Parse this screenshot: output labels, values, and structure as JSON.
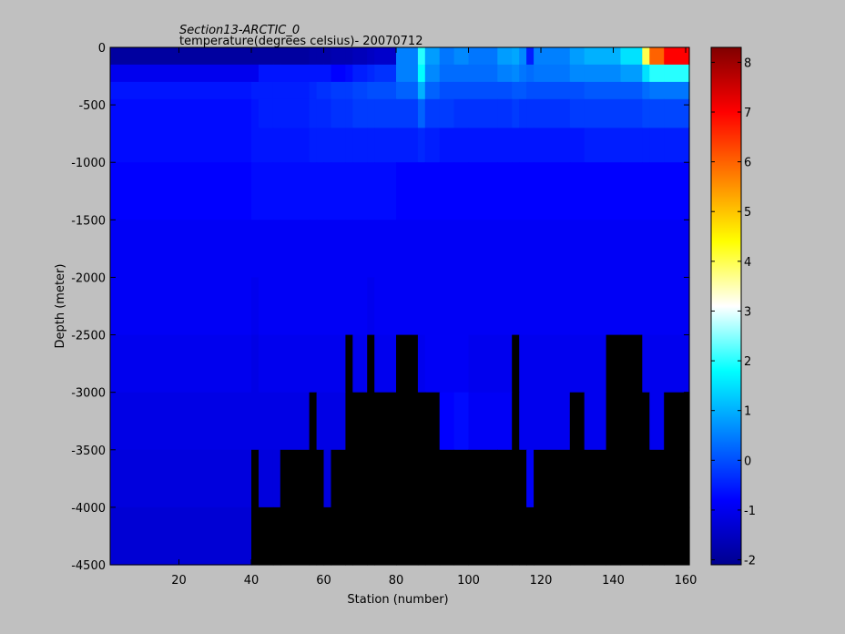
{
  "chart_data": {
    "type": "heatmap",
    "title": "Section13-ARCTIC_0",
    "subtitle": "temperature(degrees  celsius)- 20070712",
    "xlabel": "Station (number)",
    "ylabel": "Depth (meter)",
    "xlim": [
      1,
      161
    ],
    "ylim": [
      -4500,
      0
    ],
    "xticks": [
      20,
      40,
      60,
      80,
      100,
      120,
      140,
      160
    ],
    "yticks": [
      0,
      -500,
      -1000,
      -1500,
      -2000,
      -2500,
      -3000,
      -3500,
      -4000,
      -4500
    ],
    "colorbar": {
      "ticks": [
        8,
        7,
        6,
        5,
        4,
        3,
        2,
        1,
        0,
        -1,
        -2
      ],
      "clim": [
        -2.1,
        8.3
      ],
      "colormap": "jet"
    },
    "nodata_color": "#000000",
    "column_stations": [
      1,
      40,
      42,
      46,
      48,
      56,
      58,
      60,
      62,
      66,
      68,
      72,
      74,
      80,
      86,
      88,
      92,
      96,
      100,
      108,
      112,
      114,
      116,
      118,
      128,
      132,
      138,
      142,
      148,
      150,
      154,
      161
    ],
    "depth_bounds": [
      0,
      -150,
      -300,
      -450,
      -700,
      -1000,
      -1500,
      -2000,
      -2500,
      -3000,
      -3500,
      -4000,
      -4500
    ],
    "temperature": [
      [
        -1.9,
        -1.9,
        -1.9,
        -1.9,
        -1.9,
        -1.8,
        -1.8,
        -1.8,
        -1.7,
        -1.7,
        -1.6,
        -1.5,
        -1.4,
        0.5,
        2.0,
        0.8,
        0.4,
        0.6,
        0.4,
        0.8,
        0.9,
        0.6,
        -0.5,
        0.5,
        0.8,
        1.0,
        1.0,
        1.5,
        4.0,
        6.0,
        7.0
      ],
      [
        -1.0,
        -1.0,
        -0.6,
        -0.6,
        -0.6,
        -0.6,
        -0.6,
        -0.6,
        -0.8,
        -0.7,
        -0.5,
        -0.4,
        -0.3,
        0.5,
        1.8,
        0.6,
        0.3,
        0.3,
        0.3,
        0.5,
        0.6,
        0.4,
        0.3,
        0.4,
        0.6,
        0.6,
        0.6,
        0.8,
        1.5,
        2.0,
        2.0
      ],
      [
        -0.6,
        -0.5,
        -0.5,
        -0.5,
        -0.5,
        -0.4,
        -0.3,
        -0.3,
        -0.2,
        -0.2,
        -0.1,
        0.0,
        0.0,
        0.2,
        1.0,
        0.2,
        0.0,
        0.0,
        0.0,
        0.0,
        0.1,
        0.1,
        0.0,
        0.0,
        0.0,
        0.1,
        0.1,
        0.1,
        0.3,
        0.4,
        0.4
      ],
      [
        -0.7,
        -0.6,
        -0.5,
        -0.5,
        -0.5,
        -0.4,
        -0.4,
        -0.4,
        -0.3,
        -0.3,
        -0.2,
        -0.2,
        -0.2,
        -0.2,
        0.2,
        -0.2,
        -0.2,
        -0.3,
        -0.3,
        -0.3,
        -0.2,
        -0.3,
        -0.3,
        -0.3,
        -0.2,
        -0.2,
        -0.2,
        -0.2,
        -0.1,
        -0.1,
        -0.1
      ],
      [
        -0.7,
        -0.6,
        -0.6,
        -0.6,
        -0.6,
        -0.5,
        -0.5,
        -0.5,
        -0.5,
        -0.5,
        -0.5,
        -0.5,
        -0.5,
        -0.5,
        -0.4,
        -0.5,
        -0.6,
        -0.6,
        -0.6,
        -0.6,
        -0.6,
        -0.6,
        -0.6,
        -0.6,
        -0.6,
        -0.5,
        -0.5,
        -0.5,
        -0.5,
        -0.5,
        -0.5
      ],
      [
        -0.8,
        -0.7,
        -0.7,
        -0.7,
        -0.7,
        -0.7,
        -0.7,
        -0.7,
        -0.7,
        -0.7,
        -0.7,
        -0.7,
        -0.7,
        -0.8,
        -0.8,
        -0.8,
        -0.8,
        -0.8,
        -0.8,
        -0.8,
        -0.8,
        -0.8,
        -0.8,
        -0.8,
        -0.8,
        -0.8,
        -0.8,
        -0.8,
        -0.8,
        -0.8,
        -0.8
      ],
      [
        -0.9,
        -0.9,
        -0.9,
        -0.9,
        -0.9,
        -0.9,
        -0.9,
        -0.9,
        -0.9,
        -0.9,
        -0.9,
        -0.9,
        -0.9,
        -0.9,
        -0.9,
        -0.9,
        -0.9,
        -0.9,
        -0.9,
        -0.9,
        -0.9,
        -0.9,
        -0.9,
        -0.9,
        -0.9,
        -0.9,
        -0.9,
        -0.9,
        -0.9,
        -0.9,
        -0.9
      ],
      [
        -0.9,
        -1.0,
        -0.9,
        -0.9,
        -0.9,
        -0.9,
        -0.9,
        -0.9,
        -0.9,
        -0.9,
        -0.9,
        -1.0,
        -0.9,
        -0.9,
        -0.9,
        -0.9,
        -0.9,
        -0.9,
        -0.9,
        -0.9,
        -0.9,
        -0.9,
        -0.9,
        -0.9,
        -0.9,
        -0.9,
        -0.9,
        -0.9,
        -0.9,
        -0.9,
        -0.9
      ],
      [
        -1.0,
        -1.1,
        -1.0,
        -1.0,
        -1.0,
        -1.0,
        -1.0,
        -1.0,
        -1.0,
        null,
        -1.0,
        null,
        -1.0,
        null,
        -1.0,
        -0.9,
        -0.9,
        -0.9,
        -1.0,
        -1.0,
        null,
        -1.0,
        -1.0,
        -1.0,
        -1.0,
        -1.0,
        null,
        null,
        -1.0,
        -1.0,
        -1.0
      ],
      [
        -1.1,
        -1.1,
        -1.1,
        -1.1,
        -1.1,
        null,
        -1.1,
        -1.1,
        -1.1,
        null,
        null,
        null,
        null,
        null,
        null,
        null,
        -0.8,
        -0.7,
        -0.9,
        -0.9,
        null,
        -1.0,
        -1.0,
        -1.0,
        null,
        -1.0,
        null,
        null,
        null,
        -1.0,
        null
      ],
      [
        -1.2,
        null,
        -1.2,
        -1.2,
        null,
        null,
        null,
        -1.2,
        null,
        null,
        null,
        null,
        null,
        null,
        null,
        null,
        null,
        null,
        null,
        null,
        null,
        null,
        -0.9,
        null,
        null,
        null,
        null,
        null,
        null,
        null,
        null
      ],
      [
        -1.3,
        null,
        null,
        null,
        null,
        null,
        null,
        null,
        null,
        null,
        null,
        null,
        null,
        null,
        null,
        null,
        null,
        null,
        null,
        null,
        null,
        null,
        null,
        null,
        null,
        null,
        null,
        null,
        null,
        null,
        null
      ]
    ]
  }
}
